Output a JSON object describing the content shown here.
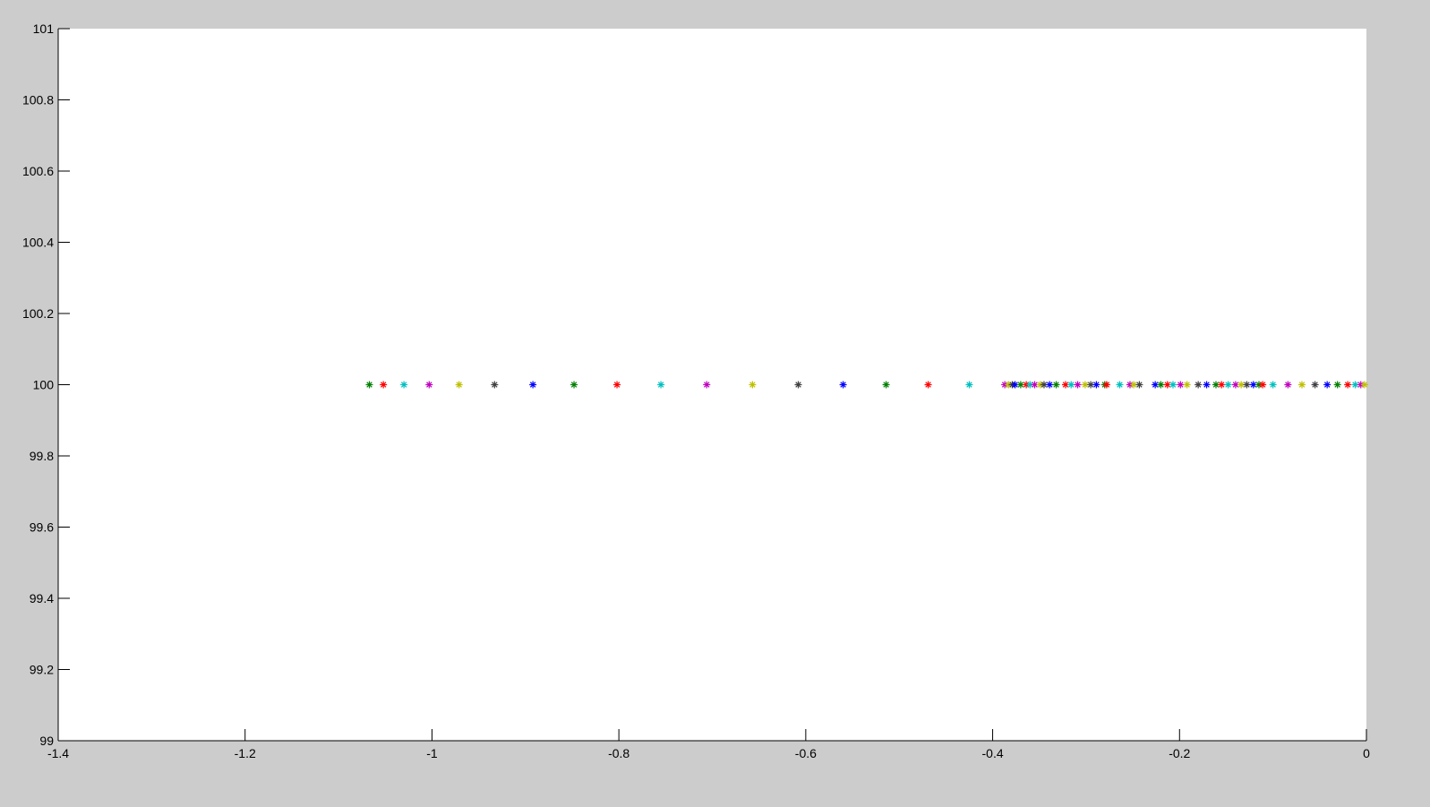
{
  "chart_data": {
    "type": "scatter",
    "title": "",
    "xlabel": "",
    "ylabel": "",
    "xlim": [
      -1.4,
      0
    ],
    "ylim": [
      99,
      101
    ],
    "grid": false,
    "marker": "*",
    "background": "#cccccc",
    "plot_background": "#ffffff",
    "color_order": [
      "#008000",
      "#ff0000",
      "#00bfbf",
      "#bf00bf",
      "#bfbf00",
      "#404040",
      "#0000ff"
    ],
    "x_ticks": [
      "-1.4",
      "-1.2",
      "-1",
      "-0.8",
      "-0.6",
      "-0.4",
      "-0.2",
      "0"
    ],
    "x_tick_values": [
      -1.4,
      -1.2,
      -1,
      -0.8,
      -0.6,
      -0.4,
      -0.2,
      0
    ],
    "y_ticks": [
      "99",
      "99.2",
      "99.4",
      "99.6",
      "99.8",
      "100",
      "100.2",
      "100.4",
      "100.6",
      "100.8",
      "101"
    ],
    "y_tick_values": [
      99,
      99.2,
      99.4,
      99.6,
      99.8,
      100,
      100.2,
      100.4,
      100.6,
      100.8,
      101
    ],
    "y": 100,
    "x": [
      -1.067,
      -1.052,
      -1.03,
      -1.003,
      -0.971,
      -0.933,
      -0.892,
      -0.848,
      -0.802,
      -0.755,
      -0.706,
      -0.657,
      -0.608,
      -0.56,
      -0.514,
      -0.469,
      -0.425,
      -0.387,
      -0.383,
      -0.379,
      -0.376,
      -0.37,
      -0.364,
      -0.36,
      -0.355,
      -0.349,
      -0.345,
      -0.339,
      -0.332,
      -0.322,
      -0.316,
      -0.309,
      -0.301,
      -0.295,
      -0.289,
      -0.28,
      -0.278,
      -0.264,
      -0.253,
      -0.249,
      -0.243,
      -0.226,
      -0.22,
      -0.213,
      -0.207,
      -0.199,
      -0.192,
      -0.18,
      -0.171,
      -0.161,
      -0.155,
      -0.148,
      -0.14,
      -0.134,
      -0.128,
      -0.121,
      -0.115,
      -0.111,
      -0.1,
      -0.084,
      -0.069,
      -0.055,
      -0.042,
      -0.031,
      -0.02,
      -0.012,
      -0.006,
      -0.002
    ]
  }
}
